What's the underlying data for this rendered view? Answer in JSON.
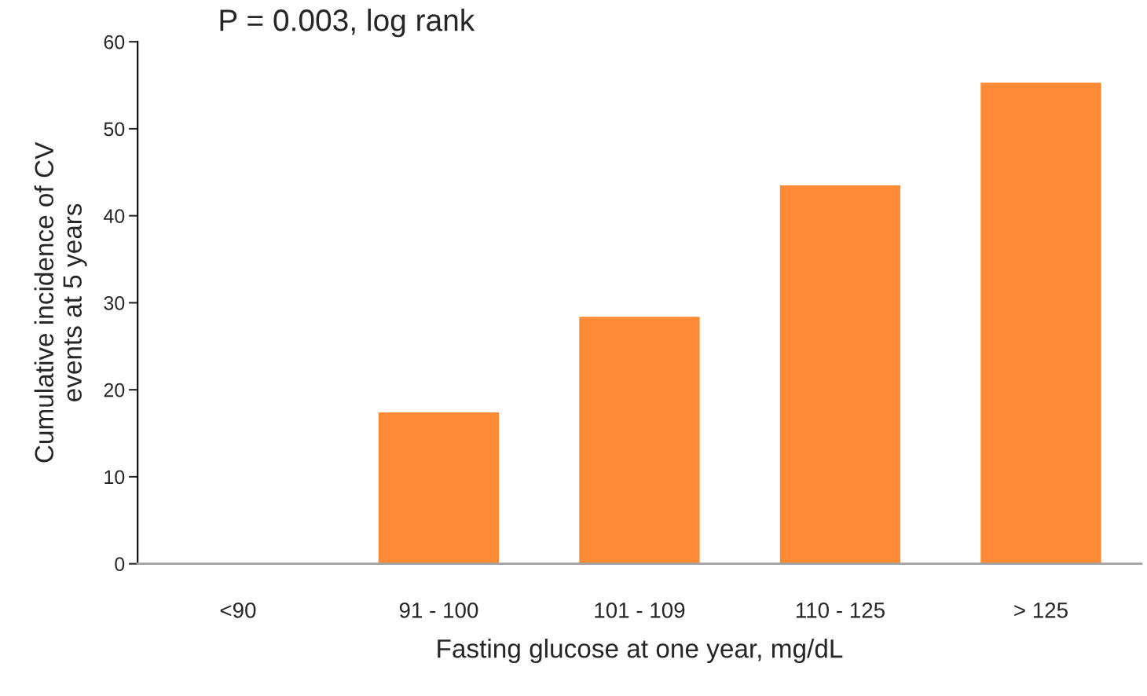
{
  "chart_data": {
    "type": "bar",
    "title": "P = 0.003, log rank",
    "xlabel": "Fasting glucose at one year, mg/dL",
    "ylabel": "Cumulative incidence of CV\nevents at 5 years",
    "categories": [
      "<90",
      "91 - 100",
      "101 - 109",
      "110 - 125",
      "> 125"
    ],
    "values": [
      0,
      17.4,
      28.4,
      43.5,
      55.3
    ],
    "color": "#fe8a36",
    "ylim": [
      0,
      60
    ],
    "yticks": [
      0,
      10,
      20,
      30,
      40,
      50,
      60
    ],
    "grid": false
  }
}
